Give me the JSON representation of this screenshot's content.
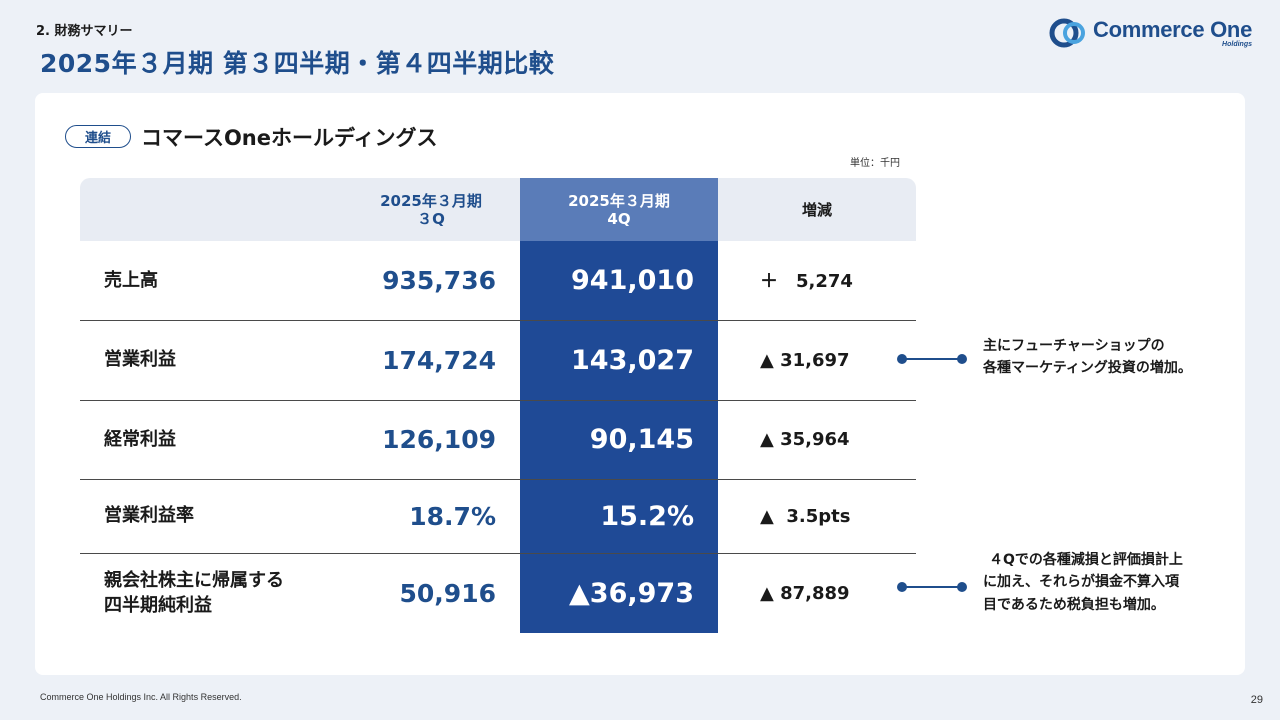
{
  "header": {
    "section": "2. 財務サマリー",
    "title": "2025年３月期 第３四半期・第４四半期比較"
  },
  "logo": {
    "name": "Commerce One",
    "sub": "Holdings"
  },
  "card": {
    "badge": "連結",
    "title": "コマースOneホールディングス",
    "unit": "単位：千円"
  },
  "table": {
    "headers": [
      {
        "line1": "",
        "line2": ""
      },
      {
        "line1": "2025年３月期",
        "line2": "３Q"
      },
      {
        "line1": "2025年３月期",
        "line2": "4Q"
      },
      {
        "line1": "増減",
        "line2": ""
      }
    ],
    "rows": [
      {
        "label": "売上高",
        "q3": "935,736",
        "q4": "941,010",
        "diff": "＋　5,274"
      },
      {
        "label": "営業利益",
        "q3": "174,724",
        "q4": "143,027",
        "diff": "▲ 31,697"
      },
      {
        "label": "経常利益",
        "q3": "126,109",
        "q4": "90,145",
        "diff": "▲ 35,964"
      },
      {
        "label": "営業利益率",
        "q3": "18.7%",
        "q4": "15.2%",
        "diff": "▲  3.5pts"
      },
      {
        "label": "親会社株主に帰属する\n四半期純利益",
        "q3": "50,916",
        "q4": "▲36,973",
        "diff": "▲ 87,889"
      }
    ]
  },
  "notes": [
    {
      "line1": "主にフューチャーショップの",
      "line2": "各種マーケティング投資の増加。"
    },
    {
      "line1": "４Qでの各種減損と評価損計上",
      "line2": "に加え、それらが損金不算入項",
      "line3": "目であるため税負担も増加。"
    }
  ],
  "footer": {
    "copyright": "Commerce One Holdings Inc. All Rights Reserved.",
    "page": "29"
  },
  "colors": {
    "brand": "#1f4e8c",
    "highlight": "#1f4a96",
    "header_bg": "#e8ecf3"
  }
}
